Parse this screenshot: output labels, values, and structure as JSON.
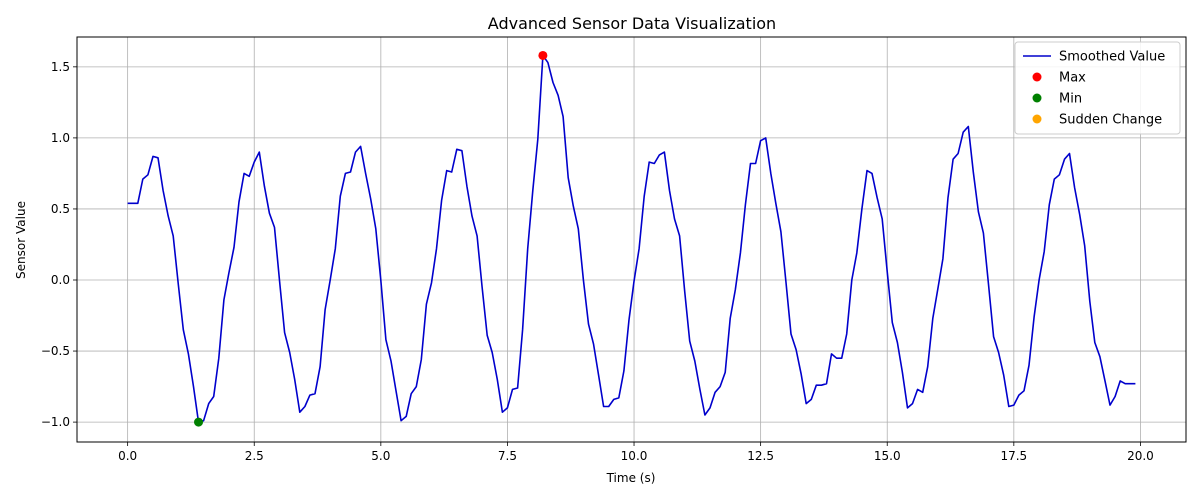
{
  "chart_data": {
    "type": "line",
    "title": "Advanced Sensor Data Visualization",
    "xlabel": "Time (s)",
    "ylabel": "Sensor Value",
    "xlim": [
      -1.0,
      20.9
    ],
    "ylim": [
      -1.14,
      1.71
    ],
    "xticks": [
      0.0,
      2.5,
      5.0,
      7.5,
      10.0,
      12.5,
      15.0,
      17.5,
      20.0
    ],
    "xtick_labels": [
      "0.0",
      "2.5",
      "5.0",
      "7.5",
      "10.0",
      "12.5",
      "15.0",
      "17.5",
      "20.0"
    ],
    "yticks": [
      -1.0,
      -0.5,
      0.0,
      0.5,
      1.0,
      1.5
    ],
    "ytick_labels": [
      "−1.0",
      "−0.5",
      "0.0",
      "0.5",
      "1.0",
      "1.5"
    ],
    "grid": true,
    "legend_position": "top-right",
    "series": [
      {
        "name": "Smoothed Value",
        "kind": "line",
        "color": "#0000cc",
        "x": [
          0.0,
          0.2,
          0.3,
          0.4,
          0.5,
          0.6,
          0.7,
          0.8,
          0.9,
          1.0,
          1.1,
          1.2,
          1.3,
          1.4,
          1.5,
          1.6,
          1.7,
          1.8,
          1.9,
          2.0,
          2.1,
          2.2,
          2.3,
          2.4,
          2.5,
          2.6,
          2.7,
          2.8,
          2.9,
          3.0,
          3.1,
          3.2,
          3.3,
          3.4,
          3.5,
          3.6,
          3.7,
          3.8,
          3.9,
          4.0,
          4.1,
          4.2,
          4.3,
          4.4,
          4.5,
          4.6,
          4.7,
          4.8,
          4.9,
          5.0,
          5.1,
          5.2,
          5.3,
          5.4,
          5.5,
          5.6,
          5.7,
          5.8,
          5.9,
          6.0,
          6.1,
          6.2,
          6.3,
          6.4,
          6.5,
          6.6,
          6.7,
          6.8,
          6.9,
          7.0,
          7.1,
          7.2,
          7.3,
          7.4,
          7.5,
          7.6,
          7.7,
          7.8,
          7.9,
          8.0,
          8.1,
          8.2,
          8.3,
          8.4,
          8.5,
          8.6,
          8.7,
          8.8,
          8.9,
          9.0,
          9.1,
          9.2,
          9.3,
          9.4,
          9.5,
          9.6,
          9.7,
          9.8,
          9.9,
          10.0,
          10.1,
          10.2,
          10.3,
          10.4,
          10.5,
          10.6,
          10.7,
          10.8,
          10.9,
          11.0,
          11.1,
          11.2,
          11.3,
          11.4,
          11.5,
          11.6,
          11.7,
          11.8,
          11.9,
          12.0,
          12.1,
          12.2,
          12.3,
          12.4,
          12.5,
          12.6,
          12.7,
          12.8,
          12.9,
          13.0,
          13.1,
          13.2,
          13.3,
          13.4,
          13.5,
          13.6,
          13.7,
          13.8,
          13.9,
          14.0,
          14.1,
          14.2,
          14.3,
          14.4,
          14.5,
          14.6,
          14.7,
          14.8,
          14.9,
          15.0,
          15.1,
          15.2,
          15.3,
          15.4,
          15.5,
          15.6,
          15.7,
          15.8,
          15.9,
          16.0,
          16.1,
          16.2,
          16.3,
          16.4,
          16.5,
          16.6,
          16.7,
          16.8,
          16.9,
          17.0,
          17.1,
          17.2,
          17.3,
          17.4,
          17.5,
          17.6,
          17.7,
          17.8,
          17.9,
          18.0,
          18.1,
          18.2,
          18.3,
          18.4,
          18.5,
          18.6,
          18.7,
          18.8,
          18.9,
          19.0,
          19.1,
          19.2,
          19.3,
          19.4,
          19.5,
          19.6,
          19.7,
          19.8,
          19.9
        ],
        "y": [
          0.54,
          0.54,
          0.71,
          0.74,
          0.87,
          0.86,
          0.63,
          0.45,
          0.31,
          -0.03,
          -0.35,
          -0.52,
          -0.75,
          -1.0,
          -0.99,
          -0.87,
          -0.82,
          -0.55,
          -0.14,
          0.05,
          0.23,
          0.55,
          0.75,
          0.73,
          0.83,
          0.9,
          0.66,
          0.47,
          0.37,
          -0.01,
          -0.37,
          -0.51,
          -0.7,
          -0.93,
          -0.89,
          -0.81,
          -0.8,
          -0.61,
          -0.21,
          0.0,
          0.22,
          0.59,
          0.75,
          0.76,
          0.9,
          0.94,
          0.75,
          0.57,
          0.36,
          0.0,
          -0.42,
          -0.57,
          -0.78,
          -0.99,
          -0.96,
          -0.8,
          -0.75,
          -0.56,
          -0.17,
          -0.02,
          0.22,
          0.56,
          0.77,
          0.76,
          0.92,
          0.91,
          0.66,
          0.45,
          0.31,
          -0.05,
          -0.39,
          -0.51,
          -0.7,
          -0.93,
          -0.9,
          -0.77,
          -0.76,
          -0.35,
          0.22,
          0.63,
          0.99,
          1.58,
          1.53,
          1.39,
          1.3,
          1.15,
          0.72,
          0.52,
          0.36,
          0.0,
          -0.31,
          -0.45,
          -0.67,
          -0.89,
          -0.89,
          -0.84,
          -0.83,
          -0.64,
          -0.28,
          -0.01,
          0.22,
          0.59,
          0.83,
          0.82,
          0.88,
          0.9,
          0.63,
          0.43,
          0.31,
          -0.08,
          -0.43,
          -0.57,
          -0.77,
          -0.95,
          -0.9,
          -0.79,
          -0.75,
          -0.65,
          -0.27,
          -0.07,
          0.19,
          0.53,
          0.82,
          0.82,
          0.98,
          1.0,
          0.75,
          0.54,
          0.34,
          -0.01,
          -0.38,
          -0.49,
          -0.66,
          -0.87,
          -0.84,
          -0.74,
          -0.74,
          -0.73,
          -0.52,
          -0.55,
          -0.55,
          -0.38,
          0.0,
          0.19,
          0.5,
          0.77,
          0.75,
          0.58,
          0.43,
          0.06,
          -0.3,
          -0.44,
          -0.65,
          -0.9,
          -0.87,
          -0.77,
          -0.79,
          -0.61,
          -0.27,
          -0.06,
          0.15,
          0.58,
          0.85,
          0.89,
          1.04,
          1.08,
          0.76,
          0.48,
          0.33,
          -0.03,
          -0.4,
          -0.51,
          -0.67,
          -0.89,
          -0.88,
          -0.81,
          -0.78,
          -0.6,
          -0.26,
          0.0,
          0.2,
          0.53,
          0.71,
          0.74,
          0.85,
          0.89,
          0.65,
          0.46,
          0.24,
          -0.15,
          -0.44,
          -0.54,
          -0.71,
          -0.88,
          -0.82,
          -0.71,
          -0.73,
          -0.73,
          -0.73
        ]
      },
      {
        "name": "Max",
        "kind": "scatter",
        "color": "#ff0000",
        "x": [
          8.2
        ],
        "y": [
          1.58
        ]
      },
      {
        "name": "Min",
        "kind": "scatter",
        "color": "#008000",
        "x": [
          1.4
        ],
        "y": [
          -1.0
        ]
      },
      {
        "name": "Sudden Change",
        "kind": "scatter",
        "color": "#ffa500",
        "x": [],
        "y": []
      }
    ]
  }
}
